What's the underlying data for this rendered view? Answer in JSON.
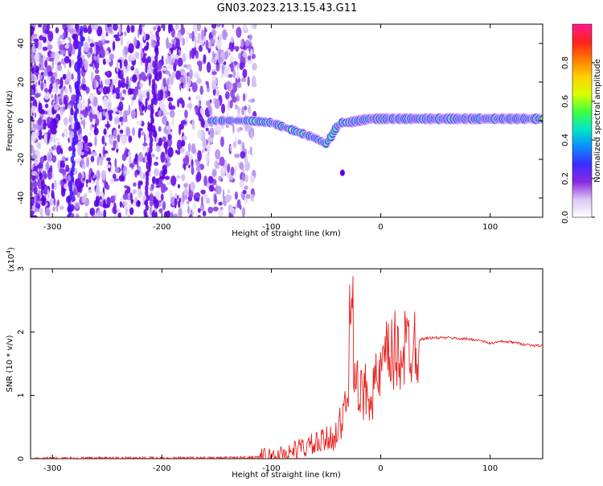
{
  "title": "GN03.2023.213.15.43.G11",
  "chart_data": [
    {
      "type": "heatmap",
      "xlabel": "Height of straight line (km)",
      "ylabel": "Frequency (Hz)",
      "xlim": [
        -320,
        148
      ],
      "ylim": [
        -50,
        50
      ],
      "x_ticks": [
        -300,
        -200,
        -100,
        0,
        100
      ],
      "y_ticks": [
        -40,
        -20,
        0,
        20,
        40
      ],
      "colorbar": {
        "label": "Normalized spectral amplitude",
        "range": [
          0,
          1
        ],
        "ticks": [
          "0.0",
          "0.2",
          "0.4",
          "0.6",
          "0.8"
        ],
        "colors": [
          "#ffffff",
          "#dcc8f5",
          "#8a2be2",
          "#3b2bff",
          "#0a8bff",
          "#00e6c8",
          "#40ff40",
          "#d8ff00",
          "#ffd000",
          "#ff7a00",
          "#ff2020",
          "#ff1a8c"
        ]
      },
      "ridge": {
        "x": [
          -160,
          -140,
          -120,
          -100,
          -90,
          -80,
          -70,
          -60,
          -50,
          -45,
          -40,
          -35,
          -30,
          -20,
          -10,
          0,
          20,
          50,
          80,
          100,
          120,
          148
        ],
        "y": [
          0,
          0,
          0,
          -1,
          -3,
          -5,
          -7,
          -9,
          -12,
          -8,
          -3,
          -1,
          -1,
          0,
          1,
          1,
          1,
          1,
          1,
          1,
          1,
          1
        ]
      }
    },
    {
      "type": "line",
      "xlabel": "Height of straight line (km)",
      "ylabel": "SNR (10 * v/v)",
      "y_scale_label": "(x10",
      "y_scale_exp": "4",
      "y_scale_suffix": ")",
      "xlim": [
        -320,
        148
      ],
      "ylim": [
        0,
        3
      ],
      "x_ticks": [
        -300,
        -200,
        -100,
        0,
        100
      ],
      "y_ticks": [
        0,
        1,
        2,
        3
      ],
      "series": [
        {
          "color": "#e8201e",
          "x": [
            -320,
            -250,
            -200,
            -150,
            -120,
            -100,
            -90,
            -80,
            -70,
            -60,
            -50,
            -40,
            -35,
            -30,
            -27,
            -25,
            -20,
            -15,
            -10,
            -5,
            0,
            5,
            10,
            20,
            30,
            40,
            50,
            60,
            70,
            80,
            90,
            100,
            110,
            120,
            130,
            140,
            148
          ],
          "y": [
            0.0,
            0.01,
            0.01,
            0.01,
            0.02,
            0.04,
            0.07,
            0.12,
            0.18,
            0.22,
            0.28,
            0.42,
            0.6,
            0.95,
            3.0,
            1.6,
            0.9,
            1.05,
            1.1,
            1.15,
            1.3,
            1.55,
            1.62,
            1.72,
            1.85,
            1.9,
            1.91,
            1.91,
            1.9,
            1.89,
            1.87,
            1.82,
            1.85,
            1.84,
            1.81,
            1.79,
            1.78
          ]
        }
      ]
    }
  ]
}
